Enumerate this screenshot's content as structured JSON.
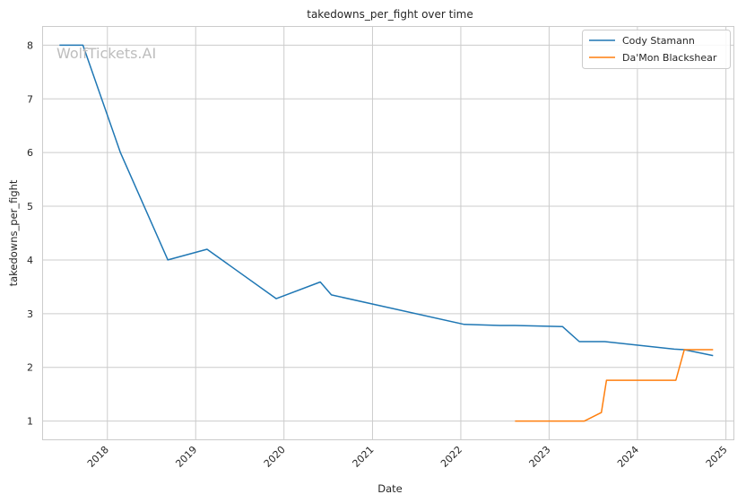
{
  "chart_data": {
    "type": "line",
    "title": "takedowns_per_fight over time",
    "xlabel": "Date",
    "ylabel": "takedowns_per_fight",
    "watermark": "WolfTickets.AI",
    "grid": true,
    "legend_position": "top-right",
    "x_ticks": [
      "2018",
      "2019",
      "2020",
      "2021",
      "2022",
      "2023",
      "2024",
      "2025"
    ],
    "y_ticks": [
      "1",
      "2",
      "3",
      "4",
      "5",
      "6",
      "7",
      "8"
    ],
    "xlim": [
      "2017-04-10",
      "2025-02-01"
    ],
    "ylim": [
      0.66,
      8.34
    ],
    "series": [
      {
        "name": "Cody Stamann",
        "color": "#1f77b4",
        "points": [
          [
            "2017-06-17",
            8.0
          ],
          [
            "2017-09-22",
            8.0
          ],
          [
            "2018-02-24",
            6.0
          ],
          [
            "2018-09-08",
            4.0
          ],
          [
            "2019-02-17",
            4.2
          ],
          [
            "2019-11-30",
            3.28
          ],
          [
            "2020-05-30",
            3.59
          ],
          [
            "2020-07-15",
            3.35
          ],
          [
            "2022-01-15",
            2.8
          ],
          [
            "2022-06-11",
            2.78
          ],
          [
            "2022-08-13",
            2.78
          ],
          [
            "2023-02-25",
            2.76
          ],
          [
            "2023-05-06",
            2.48
          ],
          [
            "2023-08-19",
            2.48
          ],
          [
            "2024-06-01",
            2.34
          ],
          [
            "2024-07-13",
            2.33
          ],
          [
            "2024-11-09",
            2.22
          ]
        ]
      },
      {
        "name": "Da'Mon Blackshear",
        "color": "#ff7f0e",
        "points": [
          [
            "2022-08-13",
            1.0
          ],
          [
            "2023-05-27",
            1.0
          ],
          [
            "2023-08-05",
            1.16
          ],
          [
            "2023-08-26",
            1.76
          ],
          [
            "2024-06-08",
            1.76
          ],
          [
            "2024-07-13",
            2.33
          ],
          [
            "2024-11-09",
            2.33
          ]
        ]
      }
    ]
  }
}
